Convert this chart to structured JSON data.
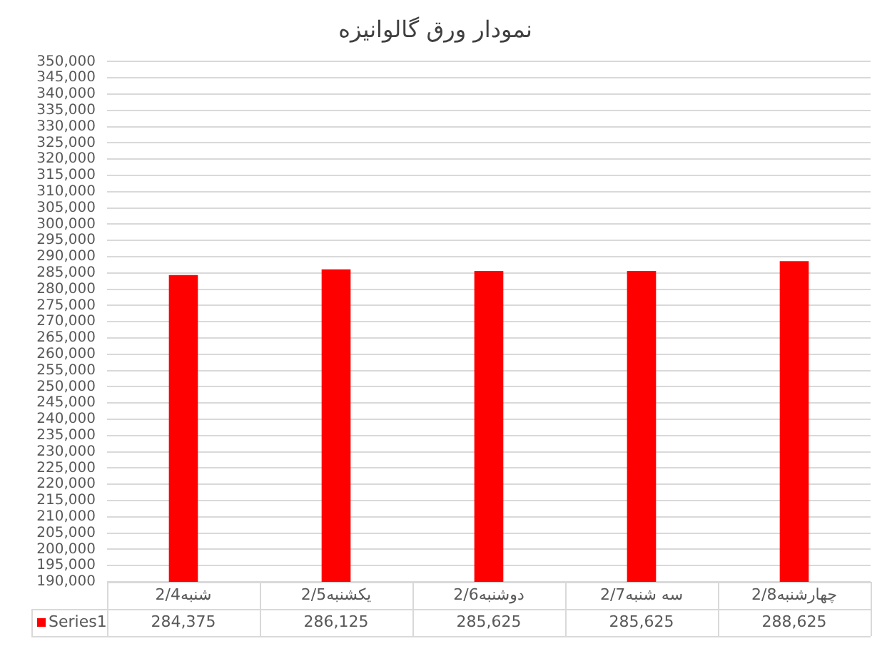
{
  "chart_data": {
    "type": "bar",
    "title": "نمودار ورق گالوانیزه",
    "categories": [
      "شنبه2/4",
      "یکشنبه2/5",
      "دوشنبه2/6",
      "سه شنبه2/7",
      "چهارشنبه2/8"
    ],
    "series": [
      {
        "name": "Series1",
        "color": "#ff0000",
        "values": [
          284375,
          286125,
          285625,
          285625,
          288625
        ],
        "value_labels": [
          "284,375",
          "286,125",
          "285,625",
          "285,625",
          "288,625"
        ]
      }
    ],
    "ylim": [
      190000,
      350000
    ],
    "yticks": [
      {
        "value": 190000,
        "label": "190,000"
      },
      {
        "value": 195000,
        "label": "195,000"
      },
      {
        "value": 200000,
        "label": "200,000"
      },
      {
        "value": 205000,
        "label": "205,000"
      },
      {
        "value": 210000,
        "label": "210,000"
      },
      {
        "value": 215000,
        "label": "215,000"
      },
      {
        "value": 220000,
        "label": "220,000"
      },
      {
        "value": 225000,
        "label": "225,000"
      },
      {
        "value": 230000,
        "label": "230,000"
      },
      {
        "value": 235000,
        "label": "235,000"
      },
      {
        "value": 240000,
        "label": "240,000"
      },
      {
        "value": 245000,
        "label": "245,000"
      },
      {
        "value": 250000,
        "label": "250,000"
      },
      {
        "value": 255000,
        "label": "255,000"
      },
      {
        "value": 260000,
        "label": "260,000"
      },
      {
        "value": 265000,
        "label": "265,000"
      },
      {
        "value": 270000,
        "label": "270,000"
      },
      {
        "value": 275000,
        "label": "275,000"
      },
      {
        "value": 280000,
        "label": "280,000"
      },
      {
        "value": 285000,
        "label": "285,000"
      },
      {
        "value": 290000,
        "label": "290,000"
      },
      {
        "value": 295000,
        "label": "295,000"
      },
      {
        "value": 300000,
        "label": "300,000"
      },
      {
        "value": 305000,
        "label": "305,000"
      },
      {
        "value": 310000,
        "label": "310,000"
      },
      {
        "value": 315000,
        "label": "315,000"
      },
      {
        "value": 320000,
        "label": "320,000"
      },
      {
        "value": 325000,
        "label": "325,000"
      },
      {
        "value": 330000,
        "label": "330,000"
      },
      {
        "value": 335000,
        "label": "335,000"
      },
      {
        "value": 340000,
        "label": "340,000"
      },
      {
        "value": 345000,
        "label": "345,000"
      },
      {
        "value": 350000,
        "label": "350,000"
      }
    ],
    "grid": "y",
    "legend": "bottom"
  }
}
